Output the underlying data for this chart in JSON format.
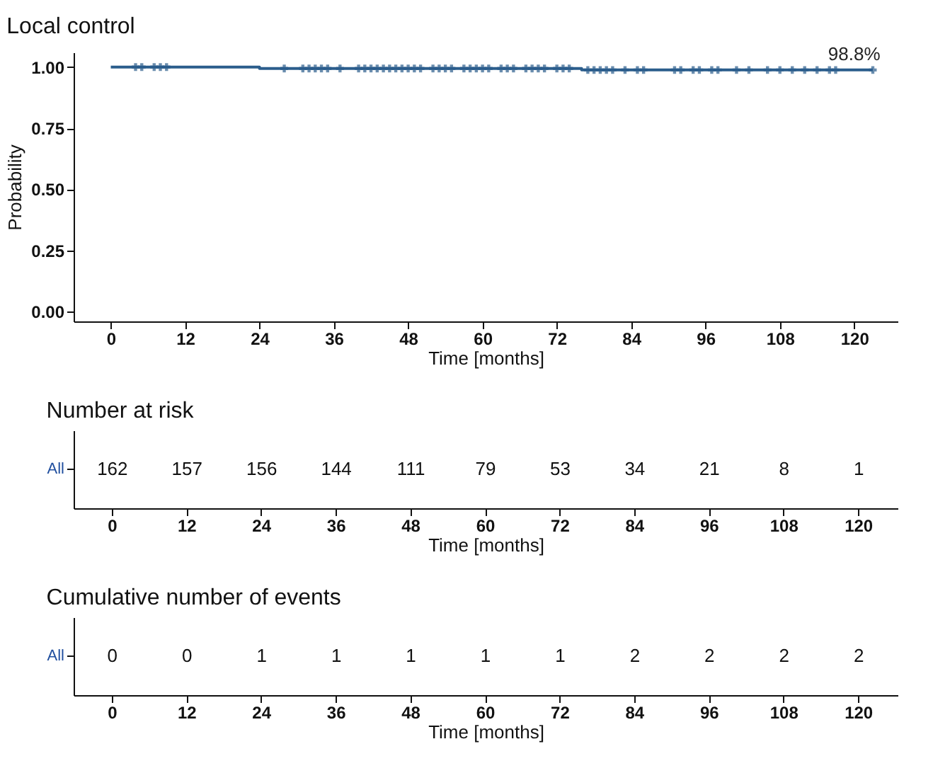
{
  "chart_data": [
    {
      "type": "step",
      "title": "Local control",
      "xlabel": "Time [months]",
      "ylabel": "Probability",
      "xlim": [
        -6,
        127
      ],
      "xticks": [
        0,
        12,
        24,
        36,
        48,
        60,
        72,
        84,
        96,
        108,
        120
      ],
      "ylim": [
        -0.04,
        1.06
      ],
      "yticks": [
        {
          "value": 0,
          "label": "0.00"
        },
        {
          "value": 0.25,
          "label": "0.25"
        },
        {
          "value": 0.5,
          "label": "0.50"
        },
        {
          "value": 0.75,
          "label": "0.75"
        },
        {
          "value": 1,
          "label": "1.00"
        }
      ],
      "series": [
        {
          "type": "step",
          "color": "#2b5d8c",
          "x": [
            0,
            24,
            76,
            123
          ],
          "values": [
            1,
            0.994,
            0.988,
            0.988
          ]
        },
        {
          "type": "scatter",
          "marker": "cross",
          "color": "#2b5d8c",
          "x": [
            4,
            5,
            7,
            8,
            9,
            28,
            31,
            32,
            33,
            34,
            35,
            37,
            40,
            41,
            42,
            43,
            44,
            45,
            46,
            47,
            48,
            49,
            50,
            52,
            53,
            54,
            55,
            57,
            58,
            59,
            60,
            61,
            63,
            64,
            65,
            67,
            68,
            69,
            70,
            72,
            73,
            74,
            77,
            78,
            79,
            80,
            81,
            83,
            85,
            86,
            91,
            92,
            94,
            95,
            97,
            98,
            101,
            103,
            106,
            108,
            110,
            112,
            114,
            116,
            117,
            123
          ],
          "values": [
            1,
            1,
            1,
            1,
            1,
            0.994,
            0.994,
            0.994,
            0.994,
            0.994,
            0.994,
            0.994,
            0.994,
            0.994,
            0.994,
            0.994,
            0.994,
            0.994,
            0.994,
            0.994,
            0.994,
            0.994,
            0.994,
            0.994,
            0.994,
            0.994,
            0.994,
            0.994,
            0.994,
            0.994,
            0.994,
            0.994,
            0.994,
            0.994,
            0.994,
            0.994,
            0.994,
            0.994,
            0.994,
            0.994,
            0.994,
            0.994,
            0.988,
            0.988,
            0.988,
            0.988,
            0.988,
            0.988,
            0.988,
            0.988,
            0.988,
            0.988,
            0.988,
            0.988,
            0.988,
            0.988,
            0.988,
            0.988,
            0.988,
            0.988,
            0.988,
            0.988,
            0.988,
            0.988,
            0.988,
            0.988
          ]
        }
      ],
      "annotations": [
        {
          "text": "98.8%",
          "x": 120,
          "y": 0.988
        }
      ]
    },
    {
      "type": "heatmap",
      "title": "Number at risk",
      "xlabel": "Time [months]",
      "categories": [
        "0",
        "12",
        "24",
        "36",
        "48",
        "60",
        "72",
        "84",
        "96",
        "108",
        "120"
      ],
      "y_categories": [
        "All"
      ],
      "cells": [
        [
          162,
          157,
          156,
          144,
          111,
          79,
          53,
          34,
          21,
          8,
          1
        ]
      ],
      "data_labels": true
    },
    {
      "type": "heatmap",
      "title": "Cumulative number of events",
      "xlabel": "Time [months]",
      "categories": [
        "0",
        "12",
        "24",
        "36",
        "48",
        "60",
        "72",
        "84",
        "96",
        "108",
        "120"
      ],
      "y_categories": [
        "All"
      ],
      "cells": [
        [
          0,
          0,
          1,
          1,
          1,
          1,
          1,
          2,
          2,
          2,
          2
        ]
      ],
      "data_labels": true
    }
  ]
}
